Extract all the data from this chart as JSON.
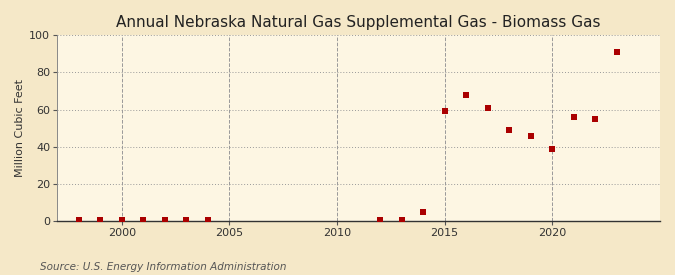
{
  "title": "Annual Nebraska Natural Gas Supplemental Gas - Biomass Gas",
  "ylabel": "Million Cubic Feet",
  "source": "Source: U.S. Energy Information Administration",
  "background_color": "#f5e8c8",
  "plot_background_color": "#fdf6e3",
  "marker_color": "#aa0000",
  "marker_size": 4,
  "xlim": [
    1997,
    2025
  ],
  "ylim": [
    0,
    100
  ],
  "yticks": [
    0,
    20,
    40,
    60,
    80,
    100
  ],
  "xticks": [
    2000,
    2005,
    2010,
    2015,
    2020
  ],
  "data": [
    [
      1998,
      0.5
    ],
    [
      1999,
      0.5
    ],
    [
      2000,
      0.5
    ],
    [
      2001,
      0.5
    ],
    [
      2002,
      0.5
    ],
    [
      2003,
      0.5
    ],
    [
      2004,
      0.5
    ],
    [
      2012,
      0.5
    ],
    [
      2013,
      0.5
    ],
    [
      2014,
      5.0
    ],
    [
      2015,
      59.0
    ],
    [
      2016,
      68.0
    ],
    [
      2017,
      61.0
    ],
    [
      2018,
      49.0
    ],
    [
      2019,
      46.0
    ],
    [
      2020,
      39.0
    ],
    [
      2021,
      56.0
    ],
    [
      2022,
      55.0
    ],
    [
      2023,
      91.0
    ]
  ],
  "title_fontsize": 11,
  "ylabel_fontsize": 8,
  "tick_fontsize": 8,
  "source_fontsize": 7.5
}
